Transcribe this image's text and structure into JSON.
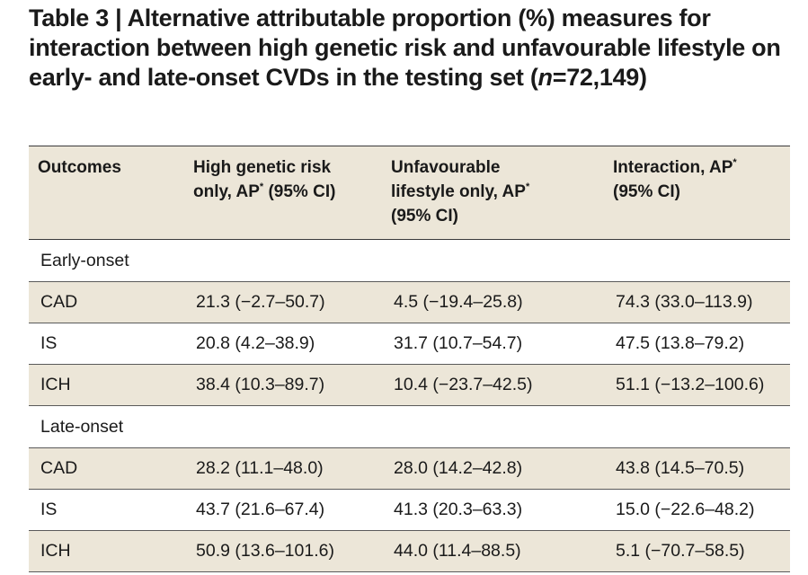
{
  "title": {
    "main": "Table 3 | Alternative attributable proportion (%) measures for interaction between high genetic risk and unfavourable lifestyle on early- and late-onset CVDs in the testing set",
    "n_open": "(",
    "n_var": "n",
    "n_rest": "=72,149)"
  },
  "header": {
    "col1": "Outcomes",
    "col2_line1": "High genetic risk",
    "col2_line2a": "only, AP",
    "col2_sup": "*",
    "col2_line2b": " (95% CI)",
    "col3_line1": "Unfavourable",
    "col3_line2a": "lifestyle only, AP",
    "col3_sup": "*",
    "col3_line3": "(95% CI)",
    "col4_line1a": "Interaction, AP",
    "col4_sup": "*",
    "col4_line2": "(95% CI)"
  },
  "groups": [
    {
      "label": "Early-onset",
      "rows": [
        {
          "outcome": "CAD",
          "genetic": "21.3 (−2.7–50.7)",
          "lifestyle": "4.5 (−19.4–25.8)",
          "interaction": "74.3 (33.0–113.9)"
        },
        {
          "outcome": "IS",
          "genetic": "20.8 (4.2–38.9)",
          "lifestyle": "31.7 (10.7–54.7)",
          "interaction": "47.5 (13.8–79.2)"
        },
        {
          "outcome": "ICH",
          "genetic": "38.4 (10.3–89.7)",
          "lifestyle": "10.4 (−23.7–42.5)",
          "interaction": "51.1 (−13.2–100.6)"
        }
      ]
    },
    {
      "label": "Late-onset",
      "rows": [
        {
          "outcome": "CAD",
          "genetic": "28.2 (11.1–48.0)",
          "lifestyle": "28.0 (14.2–42.8)",
          "interaction": "43.8 (14.5–70.5)"
        },
        {
          "outcome": "IS",
          "genetic": "43.7 (21.6–67.4)",
          "lifestyle": "41.3 (20.3–63.3)",
          "interaction": "15.0 (−22.6–48.2)"
        },
        {
          "outcome": "ICH",
          "genetic": "50.9 (13.6–101.6)",
          "lifestyle": "44.0 (11.4–88.5)",
          "interaction": "5.1 (−70.7–58.5)"
        }
      ]
    }
  ],
  "colors": {
    "shade": "#ece6d8",
    "text": "#1a1a1a",
    "rule": "#3a3a3a"
  }
}
